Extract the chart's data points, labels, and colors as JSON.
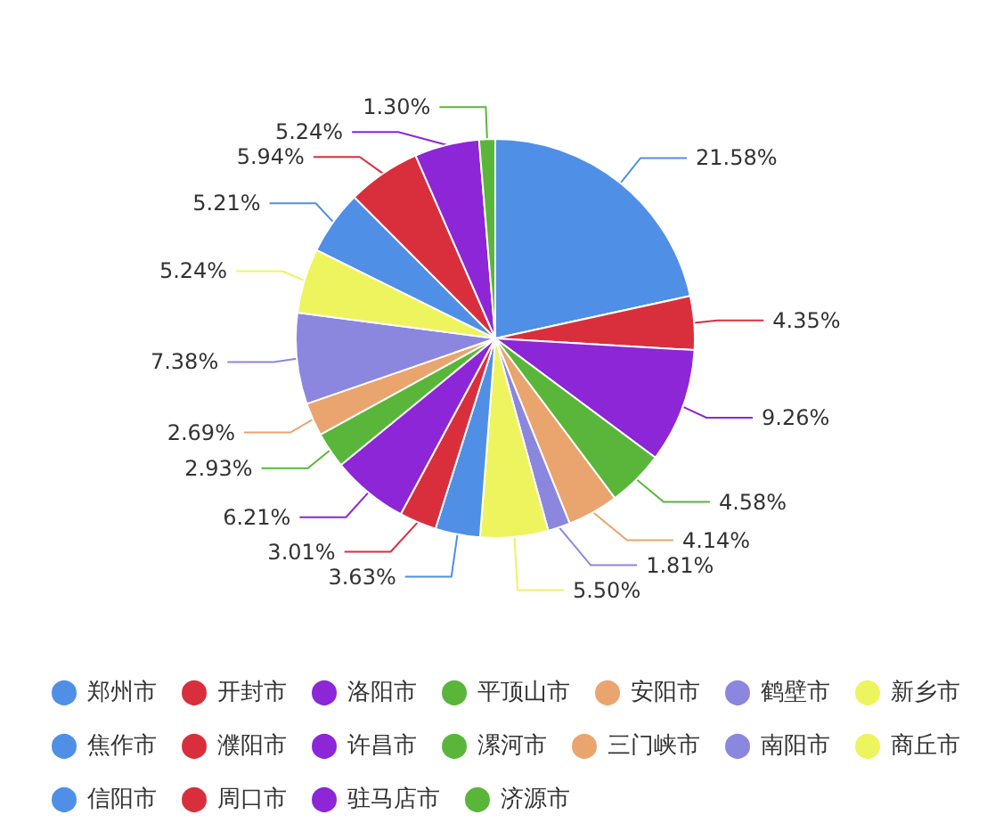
{
  "chart_data": {
    "type": "pie",
    "categories": [
      "郑州市",
      "开封市",
      "洛阳市",
      "平顶山市",
      "安阳市",
      "鹤壁市",
      "新乡市",
      "焦作市",
      "濮阳市",
      "许昌市",
      "漯河市",
      "三门峡市",
      "南阳市",
      "商丘市",
      "信阳市",
      "周口市",
      "驻马店市",
      "济源市"
    ],
    "values": [
      21.58,
      4.35,
      9.26,
      4.58,
      4.14,
      1.81,
      5.5,
      3.63,
      3.01,
      6.21,
      2.93,
      2.69,
      7.38,
      5.24,
      5.21,
      5.94,
      5.24,
      1.3
    ],
    "value_labels": [
      "21.58%",
      "4.35%",
      "9.26%",
      "4.58%",
      "4.14%",
      "1.81%",
      "5.50%",
      "3.63%",
      "3.01%",
      "6.21%",
      "2.93%",
      "2.69%",
      "7.38%",
      "5.24%",
      "5.21%",
      "5.94%",
      "5.24%",
      "1.30%"
    ],
    "colors": [
      "#4f8fe6",
      "#d92f3c",
      "#8c26d6",
      "#59b63a",
      "#eaa46e",
      "#8b86de",
      "#eef45e",
      "#4f8fe6",
      "#d92f3c",
      "#8c26d6",
      "#59b63a",
      "#eaa46e",
      "#8b86de",
      "#eef45e",
      "#4f8fe6",
      "#d92f3c",
      "#8c26d6",
      "#59b63a"
    ],
    "legend": "bottom"
  }
}
